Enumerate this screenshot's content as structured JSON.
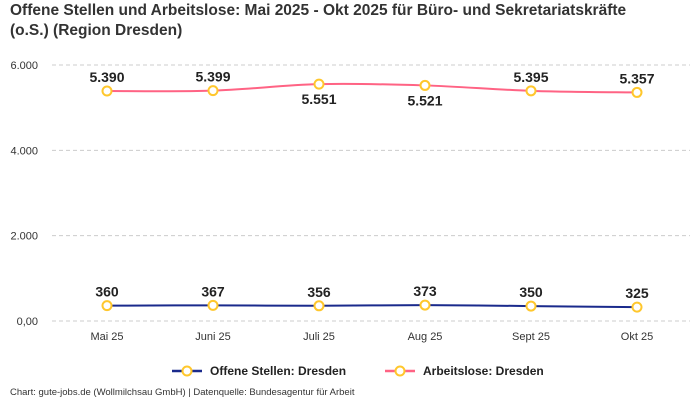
{
  "chart_data": {
    "type": "line",
    "title": "Offene Stellen und Arbeitslose: Mai 2025 - Okt 2025 für Büro- und Sekretariatskräfte (o.S.) (Region Dresden)",
    "categories": [
      "Mai 25",
      "Juni 25",
      "Juli 25",
      "Aug 25",
      "Sept 25",
      "Okt 25"
    ],
    "series": [
      {
        "name": "Offene Stellen: Dresden",
        "values": [
          360,
          367,
          356,
          373,
          350,
          325
        ],
        "labels": [
          "360",
          "367",
          "356",
          "373",
          "350",
          "325"
        ],
        "color": "#1a2a8c",
        "label_position": [
          "above",
          "above",
          "above",
          "above",
          "above",
          "above"
        ]
      },
      {
        "name": "Arbeitslose: Dresden",
        "values": [
          5390,
          5399,
          5551,
          5521,
          5395,
          5357
        ],
        "labels": [
          "5.390",
          "5.399",
          "5.551",
          "5.521",
          "5.395",
          "5.357"
        ],
        "color": "#ff6384",
        "label_position": [
          "above",
          "above",
          "below",
          "below",
          "above",
          "above"
        ]
      }
    ],
    "marker_color": "#ffc72c",
    "ylim": [
      0,
      6000
    ],
    "yticks": [
      0,
      2000,
      4000,
      6000
    ],
    "ytick_labels": [
      "0,00",
      "2.000",
      "4.000",
      "6.000"
    ],
    "grid": true,
    "legend": "bottom"
  },
  "footer": "Chart: gute-jobs.de (Wollmilchsau GmbH) | Datenquelle: Bundesagentur für Arbeit"
}
